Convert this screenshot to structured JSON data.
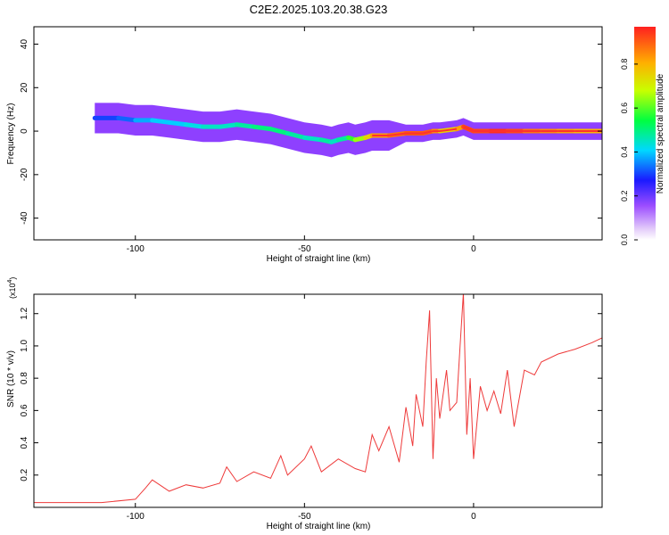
{
  "title": "C2E2.2025.103.20.38.G23",
  "chart_data": [
    {
      "type": "heatmap",
      "xlabel": "Height of straight line (km)",
      "ylabel": "Frequency (Hz)",
      "xlim": [
        -130,
        38
      ],
      "ylim": [
        -50,
        48
      ],
      "xticks": [
        -100,
        -50,
        0
      ],
      "yticks": [
        -40,
        -20,
        0,
        20,
        40
      ],
      "colorbar": {
        "label": "Normalized spectral amplitude",
        "range": [
          0,
          0.97
        ],
        "ticks": [
          0.0,
          0.2,
          0.4,
          0.6,
          0.8
        ],
        "tick_labels": [
          "0.0",
          "0.2",
          "0.4",
          "0.6",
          "0.8"
        ]
      },
      "ridge": {
        "x": [
          -112,
          -105,
          -100,
          -95,
          -90,
          -85,
          -80,
          -75,
          -70,
          -65,
          -60,
          -55,
          -50,
          -45,
          -42,
          -40,
          -37,
          -35,
          -32,
          -30,
          -25,
          -20,
          -15,
          -12,
          -10,
          -5,
          -3,
          0,
          5,
          10,
          15,
          20,
          25,
          30,
          38
        ],
        "y": [
          6,
          6,
          5,
          5,
          4,
          3,
          2,
          2,
          3,
          2,
          1,
          -1,
          -3,
          -4,
          -5,
          -4,
          -3,
          -4,
          -3,
          -2,
          -2,
          -1,
          -1,
          0,
          0,
          1,
          2,
          0,
          0,
          0,
          0,
          0,
          0,
          0,
          0
        ],
        "peak_amplitude": [
          0.3,
          0.3,
          0.35,
          0.4,
          0.4,
          0.4,
          0.45,
          0.45,
          0.45,
          0.5,
          0.5,
          0.5,
          0.45,
          0.45,
          0.5,
          0.4,
          0.55,
          0.6,
          0.7,
          0.8,
          0.85,
          0.9,
          0.9,
          0.9,
          0.8,
          0.7,
          0.95,
          0.9,
          0.95,
          0.95,
          0.9,
          0.85,
          0.85,
          0.8,
          0.8
        ]
      }
    },
    {
      "type": "line",
      "xlabel": "Height of straight line (km)",
      "ylabel": "SNR (10 * v/v)",
      "multiplier_label": "(x10",
      "multiplier_exp": "4",
      "xlim": [
        -130,
        38
      ],
      "ylim": [
        0,
        1.32
      ],
      "xticks": [
        -100,
        -50,
        0
      ],
      "yticks": [
        0.2,
        0.4,
        0.6,
        0.8,
        1.0,
        1.2
      ],
      "ytick_labels": [
        "0.2",
        "0.4",
        "0.6",
        "0.8",
        "1.0",
        "1.2"
      ],
      "color": "#ee3a3a",
      "series": [
        {
          "x": [
            -130,
            -120,
            -110,
            -100,
            -97,
            -95,
            -90,
            -85,
            -80,
            -75,
            -73,
            -70,
            -65,
            -60,
            -57,
            -55,
            -50,
            -48,
            -45,
            -40,
            -35,
            -32,
            -30,
            -28,
            -25,
            -22,
            -20,
            -18,
            -17,
            -15,
            -14,
            -13,
            -12,
            -11,
            -10,
            -8,
            -7,
            -5,
            -4,
            -3,
            -2,
            -1,
            0,
            2,
            4,
            6,
            8,
            10,
            12,
            15,
            18,
            20,
            25,
            30,
            35,
            38
          ],
          "y": [
            0.03,
            0.03,
            0.03,
            0.05,
            0.12,
            0.17,
            0.1,
            0.14,
            0.12,
            0.15,
            0.25,
            0.16,
            0.22,
            0.18,
            0.32,
            0.2,
            0.3,
            0.38,
            0.22,
            0.3,
            0.24,
            0.22,
            0.45,
            0.35,
            0.5,
            0.28,
            0.62,
            0.38,
            0.7,
            0.5,
            0.9,
            1.22,
            0.3,
            0.8,
            0.55,
            0.85,
            0.6,
            0.65,
            1.0,
            1.33,
            0.45,
            0.8,
            0.3,
            0.75,
            0.6,
            0.72,
            0.58,
            0.85,
            0.5,
            0.85,
            0.82,
            0.9,
            0.95,
            0.98,
            1.02,
            1.05
          ]
        }
      ]
    }
  ]
}
